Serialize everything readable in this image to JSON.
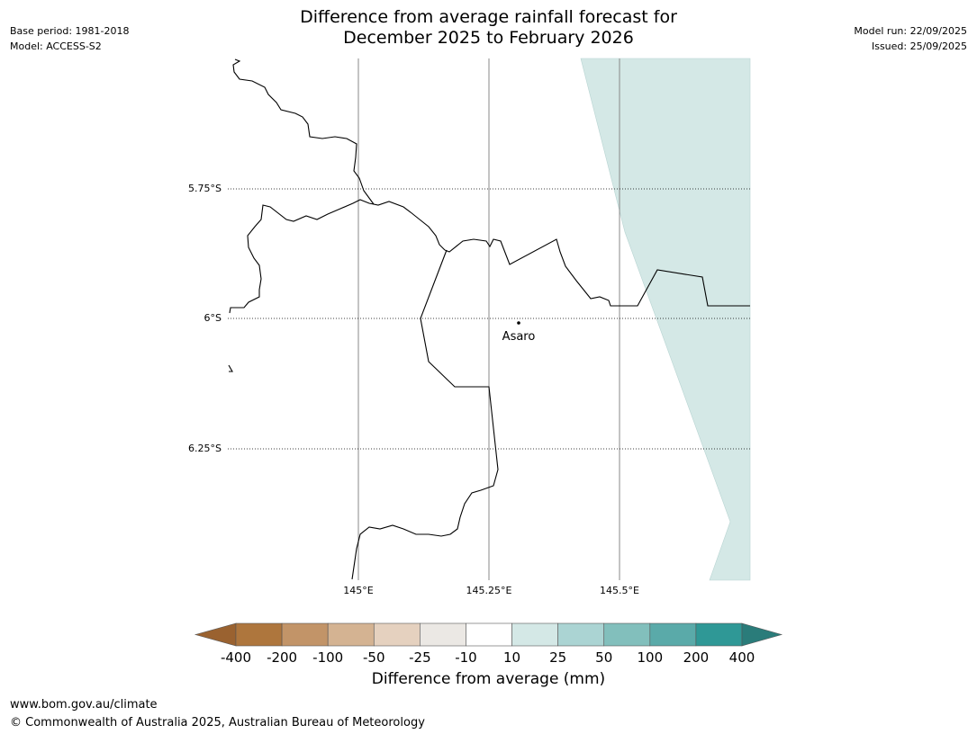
{
  "header": {
    "title_line1": "Difference from average rainfall forecast for",
    "title_line2": "December 2025 to February 2026",
    "base_period": "Base period: 1981-2018",
    "model": "Model: ACCESS-S2",
    "model_run": "Model run: 22/09/2025",
    "issued": "Issued: 25/09/2025"
  },
  "map": {
    "lat_labels": [
      "5.75°S",
      "6°S",
      "6.25°S"
    ],
    "lon_labels": [
      "145°E",
      "145.25°E",
      "145.5°E"
    ],
    "place_name": "Asaro",
    "shade_color": "#d4e8e6",
    "line_color": "#000000",
    "grid_color": "#888888"
  },
  "colorbar": {
    "label": "Difference from average (mm)",
    "ticks": [
      "-400",
      "-200",
      "-100",
      "-50",
      "-25",
      "-10",
      "10",
      "25",
      "50",
      "100",
      "200",
      "400"
    ],
    "colors": [
      "#9a6230",
      "#ae763d",
      "#c29468",
      "#d4b392",
      "#e5d1bf",
      "#ebe8e4",
      "#ffffff",
      "#d4e8e6",
      "#abd4d3",
      "#82bfbc",
      "#5aaaa9",
      "#2f9896",
      "#2a7c7a"
    ]
  },
  "footer": {
    "url": "www.bom.gov.au/climate",
    "copyright": "© Commonwealth of Australia 2025, Australian Bureau of Meteorology"
  }
}
